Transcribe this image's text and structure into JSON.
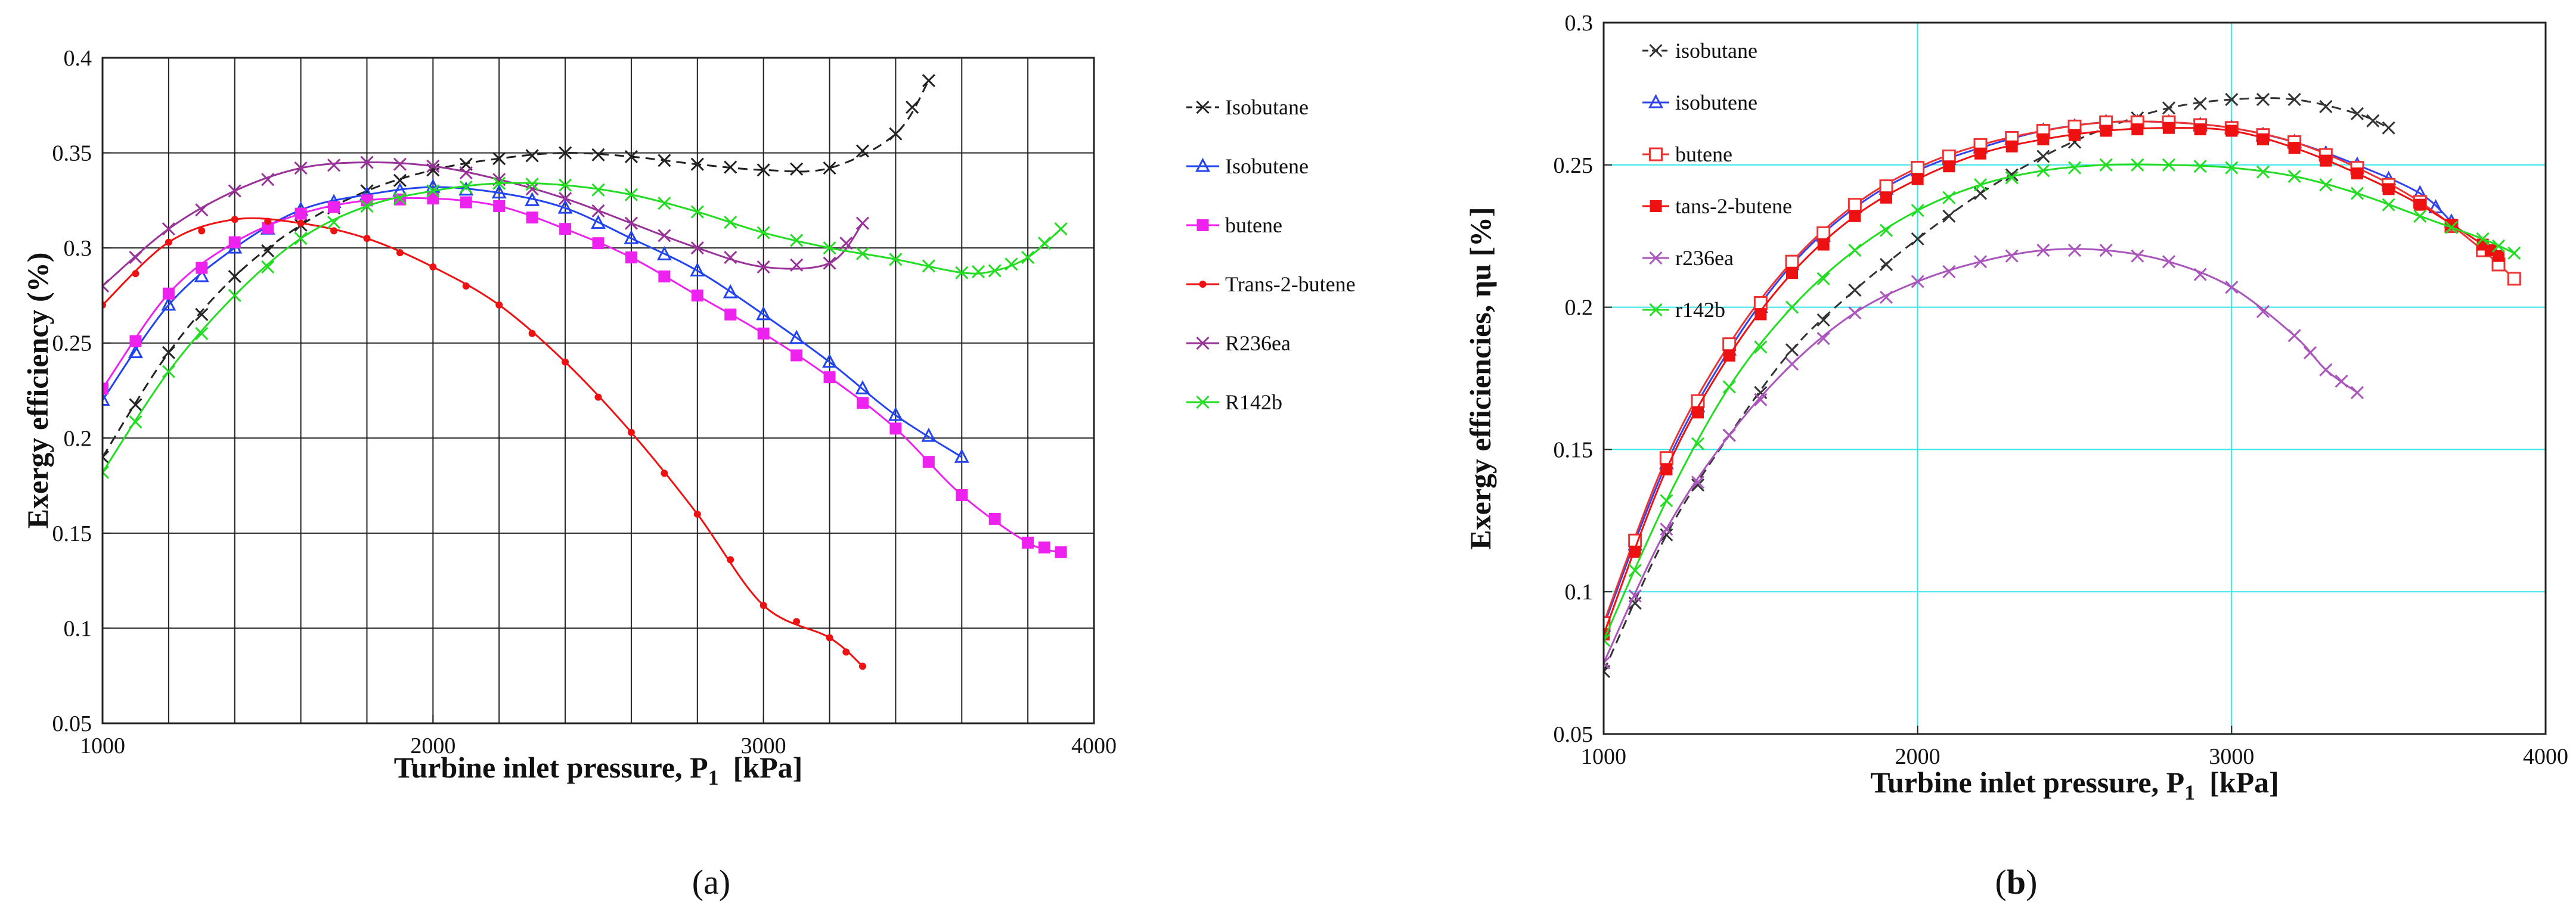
{
  "panels": [
    {
      "id": "a",
      "label": "(a)",
      "label_letter": "a",
      "chart_data": {
        "type": "line",
        "title": "",
        "xlabel": "Turbine inlet pressure, P",
        "xlabel_sub": "1",
        "xlabel_unit": "[kPa]",
        "ylabel": "Exergy efficiency (%)",
        "xlim": [
          1000,
          4000
        ],
        "ylim": [
          0.05,
          0.4
        ],
        "xticks": [
          1000,
          2000,
          3000,
          4000
        ],
        "xtick_labels": [
          "1000",
          "2000",
          "3000",
          "4000"
        ],
        "yticks": [
          0.05,
          0.1,
          0.15,
          0.2,
          0.25,
          0.3,
          0.35,
          0.4
        ],
        "ytick_labels": [
          "0.05",
          "0.1",
          "0.15",
          "0.2",
          "0.25",
          "0.3",
          "0.35",
          "0.4"
        ],
        "grid": "on",
        "grid_color": "#222222",
        "legend_position": "right",
        "series": [
          {
            "name": "Isobutane",
            "color": "#222222",
            "marker": "x",
            "dash": "dashed",
            "x": [
              1000,
              1200,
              1400,
              1600,
              1800,
              2000,
              2200,
              2400,
              2600,
              2800,
              3000,
              3200,
              3400,
              3500
            ],
            "y": [
              0.19,
              0.245,
              0.285,
              0.312,
              0.33,
              0.341,
              0.347,
              0.35,
              0.348,
              0.344,
              0.341,
              0.342,
              0.36,
              0.388
            ]
          },
          {
            "name": "Isobutene",
            "color": "#2244ee",
            "marker": "triangle",
            "dash": "solid",
            "x": [
              1000,
              1200,
              1400,
              1600,
              1800,
              2000,
              2200,
              2400,
              2600,
              2800,
              3000,
              3200,
              3400,
              3600
            ],
            "y": [
              0.22,
              0.27,
              0.3,
              0.32,
              0.328,
              0.332,
              0.329,
              0.321,
              0.305,
              0.288,
              0.265,
              0.24,
              0.212,
              0.19
            ]
          },
          {
            "name": "butene",
            "color": "#ee22ee",
            "marker": "square",
            "dash": "solid",
            "x": [
              1000,
              1200,
              1400,
              1600,
              1800,
              2000,
              2200,
              2400,
              2600,
              2800,
              3000,
              3200,
              3400,
              3600,
              3800,
              3900
            ],
            "y": [
              0.226,
              0.276,
              0.303,
              0.318,
              0.325,
              0.326,
              0.322,
              0.31,
              0.295,
              0.275,
              0.255,
              0.232,
              0.205,
              0.17,
              0.145,
              0.14
            ]
          },
          {
            "name": "Trans-2-butene",
            "color": "#ee1111",
            "marker": "dot",
            "dash": "solid",
            "x": [
              1000,
              1200,
              1400,
              1600,
              1800,
              2000,
              2200,
              2400,
              2600,
              2800,
              3000,
              3200,
              3300
            ],
            "y": [
              0.27,
              0.303,
              0.315,
              0.313,
              0.305,
              0.29,
              0.27,
              0.24,
              0.203,
              0.16,
              0.112,
              0.095,
              0.08
            ]
          },
          {
            "name": "R236ea",
            "color": "#993399",
            "marker": "x",
            "dash": "solid",
            "x": [
              1000,
              1200,
              1400,
              1600,
              1800,
              2000,
              2200,
              2400,
              2600,
              2800,
              3000,
              3200,
              3300
            ],
            "y": [
              0.28,
              0.31,
              0.33,
              0.342,
              0.345,
              0.343,
              0.336,
              0.326,
              0.313,
              0.3,
              0.29,
              0.292,
              0.313
            ]
          },
          {
            "name": "R142b",
            "color": "#22dd22",
            "marker": "x",
            "dash": "solid",
            "x": [
              1000,
              1200,
              1400,
              1600,
              1800,
              2000,
              2200,
              2400,
              2600,
              2800,
              3000,
              3200,
              3400,
              3600,
              3700,
              3800,
              3900
            ],
            "y": [
              0.182,
              0.235,
              0.275,
              0.305,
              0.322,
              0.33,
              0.334,
              0.333,
              0.328,
              0.319,
              0.308,
              0.3,
              0.294,
              0.287,
              0.288,
              0.295,
              0.31
            ]
          }
        ]
      }
    },
    {
      "id": "b",
      "label": "(b)",
      "label_letter": "b",
      "chart_data": {
        "type": "line",
        "title": "",
        "xlabel": "Turbine inlet pressure, P",
        "xlabel_sub": "1",
        "xlabel_unit": "[kPa]",
        "ylabel": "Exergy efficiencies, ηu [%]",
        "xlim": [
          1000,
          4000
        ],
        "ylim": [
          0.05,
          0.3
        ],
        "xticks": [
          1000,
          2000,
          3000,
          4000
        ],
        "xtick_labels": [
          "1000",
          "2000",
          "3000",
          "4000"
        ],
        "yticks": [
          0.05,
          0.1,
          0.15,
          0.2,
          0.25,
          0.3
        ],
        "ytick_labels": [
          "0.05",
          "0.1",
          "0.15",
          "0.2",
          "0.25",
          "0.3"
        ],
        "grid": "on",
        "grid_color": "#33e5e5",
        "legend_position": "top-left",
        "series": [
          {
            "name": "isobutane",
            "color": "#333333",
            "marker": "x",
            "dash": "dashed",
            "x": [
              1000,
              1200,
              1400,
              1600,
              1800,
              2000,
              2200,
              2400,
              2600,
              2800,
              3000,
              3200,
              3400,
              3500
            ],
            "y": [
              0.072,
              0.12,
              0.155,
              0.185,
              0.206,
              0.224,
              0.24,
              0.253,
              0.263,
              0.27,
              0.273,
              0.273,
              0.268,
              0.263
            ]
          },
          {
            "name": "isobutene",
            "color": "#3344ee",
            "marker": "triangle",
            "dash": "solid",
            "x": [
              1000,
              1200,
              1400,
              1600,
              1800,
              2000,
              2200,
              2400,
              2600,
              2800,
              3000,
              3200,
              3400,
              3600,
              3700
            ],
            "y": [
              0.088,
              0.145,
              0.185,
              0.215,
              0.235,
              0.248,
              0.256,
              0.262,
              0.265,
              0.265,
              0.263,
              0.258,
              0.25,
              0.24,
              0.23
            ]
          },
          {
            "name": "butene",
            "color": "#ee3333",
            "marker": "square-open",
            "dash": "solid",
            "x": [
              1000,
              1200,
              1400,
              1600,
              1800,
              2000,
              2200,
              2400,
              2600,
              2800,
              3000,
              3200,
              3400,
              3600,
              3800,
              3900
            ],
            "y": [
              0.089,
              0.147,
              0.187,
              0.216,
              0.236,
              0.249,
              0.257,
              0.262,
              0.265,
              0.265,
              0.263,
              0.258,
              0.249,
              0.237,
              0.22,
              0.21
            ]
          },
          {
            "name": "tans-2-butene",
            "color": "#ee1111",
            "marker": "square",
            "dash": "solid",
            "x": [
              1000,
              1200,
              1400,
              1600,
              1800,
              2000,
              2200,
              2400,
              2600,
              2800,
              3000,
              3200,
              3400,
              3600,
              3800,
              3850
            ],
            "y": [
              0.085,
              0.143,
              0.183,
              0.212,
              0.232,
              0.245,
              0.254,
              0.259,
              0.262,
              0.263,
              0.262,
              0.256,
              0.247,
              0.236,
              0.222,
              0.218
            ]
          },
          {
            "name": "r236ea",
            "color": "#aa55bb",
            "marker": "x",
            "dash": "solid",
            "x": [
              1000,
              1200,
              1400,
              1600,
              1800,
              2000,
              2200,
              2400,
              2600,
              2800,
              3000,
              3200,
              3300,
              3400
            ],
            "y": [
              0.075,
              0.122,
              0.155,
              0.18,
              0.198,
              0.209,
              0.216,
              0.22,
              0.22,
              0.216,
              0.207,
              0.19,
              0.178,
              0.17
            ]
          },
          {
            "name": "r142b",
            "color": "#22dd22",
            "marker": "x",
            "dash": "solid",
            "x": [
              1000,
              1200,
              1400,
              1600,
              1800,
              2000,
              2200,
              2400,
              2600,
              2800,
              3000,
              3200,
              3400,
              3600,
              3800,
              3900
            ],
            "y": [
              0.083,
              0.132,
              0.172,
              0.2,
              0.22,
              0.234,
              0.243,
              0.248,
              0.25,
              0.25,
              0.249,
              0.246,
              0.24,
              0.232,
              0.224,
              0.219
            ]
          }
        ]
      }
    }
  ]
}
